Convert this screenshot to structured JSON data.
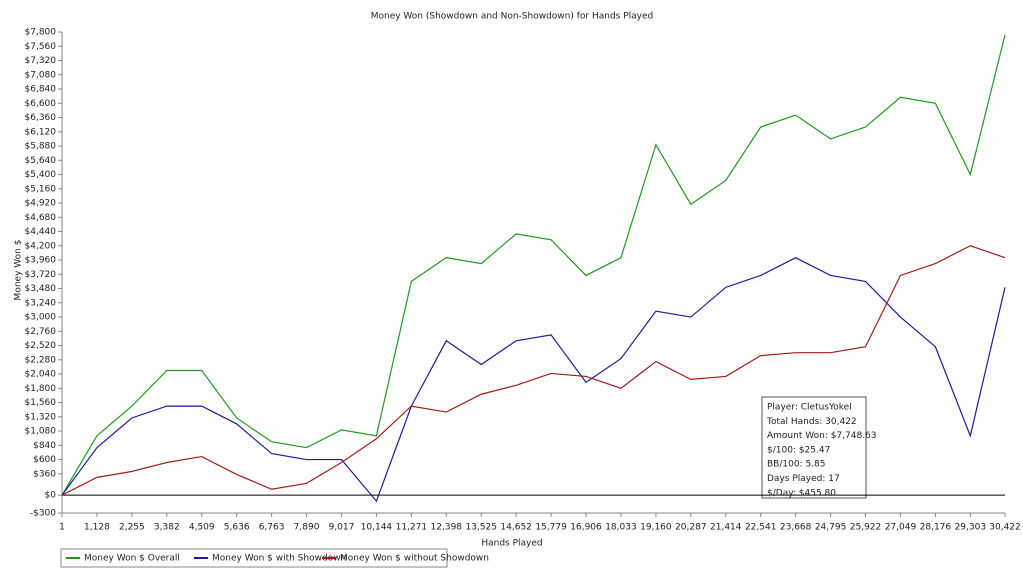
{
  "chart_data": {
    "type": "line",
    "title": "Money Won (Showdown and Non-Showdown) for Hands Played",
    "y_label": "Money Won $",
    "x_label": "Hands Played",
    "x": [
      1,
      1128,
      2255,
      3382,
      4509,
      5636,
      6763,
      7890,
      9017,
      10144,
      11271,
      12398,
      13525,
      14652,
      15779,
      16906,
      18033,
      19160,
      20287,
      21414,
      22541,
      23668,
      24795,
      25922,
      27049,
      28176,
      29303,
      30422
    ],
    "series": [
      {
        "name": "Money Won $ Overall",
        "color": "#1f9a1f",
        "values": [
          0,
          1000,
          1500,
          2100,
          2100,
          1300,
          900,
          800,
          1100,
          1000,
          3600,
          4000,
          3900,
          4400,
          4300,
          3700,
          4000,
          5900,
          4900,
          5300,
          6200,
          6400,
          6000,
          6200,
          6700,
          6600,
          5400,
          7749
        ]
      },
      {
        "name": "Money Won $ with Showdown",
        "color": "#1c1ca0",
        "values": [
          0,
          800,
          1300,
          1500,
          1500,
          1200,
          700,
          600,
          600,
          -100,
          1500,
          2600,
          2200,
          2600,
          2700,
          1900,
          2300,
          3100,
          3000,
          3500,
          3700,
          4000,
          3700,
          3600,
          3000,
          2500,
          1000,
          3500
        ]
      },
      {
        "name": "Money Won $ without Showdown",
        "color": "#a01c1c",
        "values": [
          0,
          300,
          400,
          550,
          650,
          350,
          100,
          200,
          550,
          950,
          1500,
          1400,
          1700,
          1850,
          2050,
          2000,
          1800,
          2250,
          1950,
          2000,
          2350,
          2400,
          2400,
          2500,
          3700,
          3900,
          4200,
          4000
        ]
      }
    ],
    "xlim": [
      1,
      30422
    ],
    "ylim": [
      -300,
      7800
    ],
    "xticks": [
      1,
      {
        "value": 1128,
        "label": "1,128"
      },
      {
        "value": 2255,
        "label": "2,255"
      },
      {
        "value": 3382,
        "label": "3,382"
      },
      {
        "value": 4509,
        "label": "4,509"
      },
      {
        "value": 5636,
        "label": "5,636"
      },
      {
        "value": 6763,
        "label": "6,763"
      },
      {
        "value": 7890,
        "label": "7,890"
      },
      {
        "value": 9017,
        "label": "9,017"
      },
      {
        "value": 10144,
        "label": "10,144"
      },
      {
        "value": 11271,
        "label": "11,271"
      },
      {
        "value": 12398,
        "label": "12,398"
      },
      {
        "value": 13525,
        "label": "13,525"
      },
      {
        "value": 14652,
        "label": "14,652"
      },
      {
        "value": 15779,
        "label": "15,779"
      },
      {
        "value": 16906,
        "label": "16,906"
      },
      {
        "value": 18033,
        "label": "18,033"
      },
      {
        "value": 19160,
        "label": "19,160"
      },
      {
        "value": 20287,
        "label": "20,287"
      },
      {
        "value": 21414,
        "label": "21,414"
      },
      {
        "value": 22541,
        "label": "22,541"
      },
      {
        "value": 23668,
        "label": "23,668"
      },
      {
        "value": 24795,
        "label": "24,795"
      },
      {
        "value": 25922,
        "label": "25,922"
      },
      {
        "value": 27049,
        "label": "27,049"
      },
      {
        "value": 28176,
        "label": "28,176"
      },
      {
        "value": 29303,
        "label": "29,303"
      },
      {
        "value": 30422,
        "label": "30,422"
      }
    ],
    "yticks": [
      {
        "value": -300,
        "label": "-$300"
      },
      {
        "value": 0,
        "label": "$0"
      },
      {
        "value": 360,
        "label": "$360"
      },
      {
        "value": 600,
        "label": "$600"
      },
      {
        "value": 840,
        "label": "$840"
      },
      {
        "value": 1080,
        "label": "$1,080"
      },
      {
        "value": 1320,
        "label": "$1,320"
      },
      {
        "value": 1560,
        "label": "$1,560"
      },
      {
        "value": 1800,
        "label": "$1,800"
      },
      {
        "value": 2040,
        "label": "$2,040"
      },
      {
        "value": 2280,
        "label": "$2,280"
      },
      {
        "value": 2520,
        "label": "$2,520"
      },
      {
        "value": 2760,
        "label": "$2,760"
      },
      {
        "value": 3000,
        "label": "$3,000"
      },
      {
        "value": 3240,
        "label": "$3,240"
      },
      {
        "value": 3480,
        "label": "$3,480"
      },
      {
        "value": 3720,
        "label": "$3,720"
      },
      {
        "value": 3960,
        "label": "$3,960"
      },
      {
        "value": 4200,
        "label": "$4,200"
      },
      {
        "value": 4440,
        "label": "$4,440"
      },
      {
        "value": 4680,
        "label": "$4,680"
      },
      {
        "value": 4920,
        "label": "$4,920"
      },
      {
        "value": 5160,
        "label": "$5,160"
      },
      {
        "value": 5400,
        "label": "$5,400"
      },
      {
        "value": 5640,
        "label": "$5,640"
      },
      {
        "value": 5880,
        "label": "$5,880"
      },
      {
        "value": 6120,
        "label": "$6,120"
      },
      {
        "value": 6360,
        "label": "$6,360"
      },
      {
        "value": 6600,
        "label": "$6,600"
      },
      {
        "value": 6840,
        "label": "$6,840"
      },
      {
        "value": 7080,
        "label": "$7,080"
      },
      {
        "value": 7320,
        "label": "$7,320"
      },
      {
        "value": 7560,
        "label": "$7,560"
      },
      {
        "value": 7800,
        "label": "$7,800"
      }
    ],
    "annotations": [
      "Player: CletusYokel",
      "Total Hands: 30,422",
      "Amount Won: $7,748.63",
      "$/100: $25.47",
      "BB/100: 5.85",
      "Days Played: 17",
      "$/Day: $455.80"
    ]
  }
}
